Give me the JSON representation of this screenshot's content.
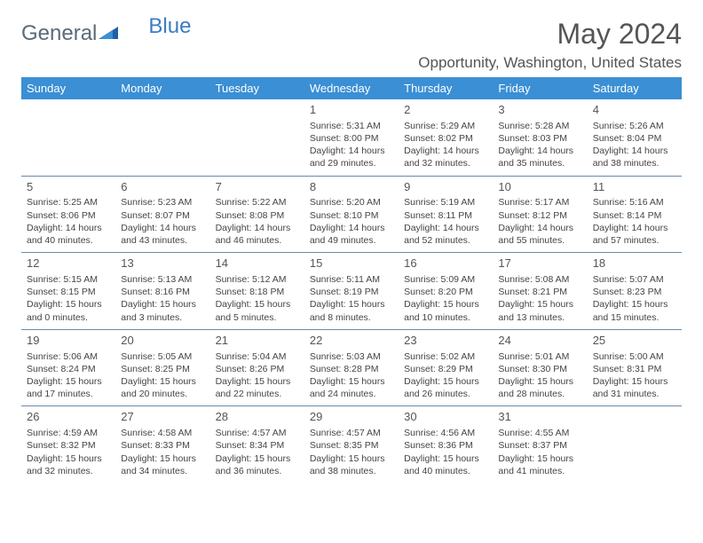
{
  "logo": {
    "text1": "General",
    "text2": "Blue"
  },
  "title": "May 2024",
  "location": "Opportunity, Washington, United States",
  "colors": {
    "header_bg": "#3b8fd4",
    "header_text": "#ffffff",
    "logo_gray": "#5a6a7a",
    "logo_blue": "#3b7dc4",
    "border": "#6a8aaa",
    "text": "#444444",
    "background": "#ffffff"
  },
  "days_of_week": [
    "Sunday",
    "Monday",
    "Tuesday",
    "Wednesday",
    "Thursday",
    "Friday",
    "Saturday"
  ],
  "weeks": [
    [
      null,
      null,
      null,
      {
        "n": "1",
        "sr": "5:31 AM",
        "ss": "8:00 PM",
        "dl": "14 hours and 29 minutes."
      },
      {
        "n": "2",
        "sr": "5:29 AM",
        "ss": "8:02 PM",
        "dl": "14 hours and 32 minutes."
      },
      {
        "n": "3",
        "sr": "5:28 AM",
        "ss": "8:03 PM",
        "dl": "14 hours and 35 minutes."
      },
      {
        "n": "4",
        "sr": "5:26 AM",
        "ss": "8:04 PM",
        "dl": "14 hours and 38 minutes."
      }
    ],
    [
      {
        "n": "5",
        "sr": "5:25 AM",
        "ss": "8:06 PM",
        "dl": "14 hours and 40 minutes."
      },
      {
        "n": "6",
        "sr": "5:23 AM",
        "ss": "8:07 PM",
        "dl": "14 hours and 43 minutes."
      },
      {
        "n": "7",
        "sr": "5:22 AM",
        "ss": "8:08 PM",
        "dl": "14 hours and 46 minutes."
      },
      {
        "n": "8",
        "sr": "5:20 AM",
        "ss": "8:10 PM",
        "dl": "14 hours and 49 minutes."
      },
      {
        "n": "9",
        "sr": "5:19 AM",
        "ss": "8:11 PM",
        "dl": "14 hours and 52 minutes."
      },
      {
        "n": "10",
        "sr": "5:17 AM",
        "ss": "8:12 PM",
        "dl": "14 hours and 55 minutes."
      },
      {
        "n": "11",
        "sr": "5:16 AM",
        "ss": "8:14 PM",
        "dl": "14 hours and 57 minutes."
      }
    ],
    [
      {
        "n": "12",
        "sr": "5:15 AM",
        "ss": "8:15 PM",
        "dl": "15 hours and 0 minutes."
      },
      {
        "n": "13",
        "sr": "5:13 AM",
        "ss": "8:16 PM",
        "dl": "15 hours and 3 minutes."
      },
      {
        "n": "14",
        "sr": "5:12 AM",
        "ss": "8:18 PM",
        "dl": "15 hours and 5 minutes."
      },
      {
        "n": "15",
        "sr": "5:11 AM",
        "ss": "8:19 PM",
        "dl": "15 hours and 8 minutes."
      },
      {
        "n": "16",
        "sr": "5:09 AM",
        "ss": "8:20 PM",
        "dl": "15 hours and 10 minutes."
      },
      {
        "n": "17",
        "sr": "5:08 AM",
        "ss": "8:21 PM",
        "dl": "15 hours and 13 minutes."
      },
      {
        "n": "18",
        "sr": "5:07 AM",
        "ss": "8:23 PM",
        "dl": "15 hours and 15 minutes."
      }
    ],
    [
      {
        "n": "19",
        "sr": "5:06 AM",
        "ss": "8:24 PM",
        "dl": "15 hours and 17 minutes."
      },
      {
        "n": "20",
        "sr": "5:05 AM",
        "ss": "8:25 PM",
        "dl": "15 hours and 20 minutes."
      },
      {
        "n": "21",
        "sr": "5:04 AM",
        "ss": "8:26 PM",
        "dl": "15 hours and 22 minutes."
      },
      {
        "n": "22",
        "sr": "5:03 AM",
        "ss": "8:28 PM",
        "dl": "15 hours and 24 minutes."
      },
      {
        "n": "23",
        "sr": "5:02 AM",
        "ss": "8:29 PM",
        "dl": "15 hours and 26 minutes."
      },
      {
        "n": "24",
        "sr": "5:01 AM",
        "ss": "8:30 PM",
        "dl": "15 hours and 28 minutes."
      },
      {
        "n": "25",
        "sr": "5:00 AM",
        "ss": "8:31 PM",
        "dl": "15 hours and 31 minutes."
      }
    ],
    [
      {
        "n": "26",
        "sr": "4:59 AM",
        "ss": "8:32 PM",
        "dl": "15 hours and 32 minutes."
      },
      {
        "n": "27",
        "sr": "4:58 AM",
        "ss": "8:33 PM",
        "dl": "15 hours and 34 minutes."
      },
      {
        "n": "28",
        "sr": "4:57 AM",
        "ss": "8:34 PM",
        "dl": "15 hours and 36 minutes."
      },
      {
        "n": "29",
        "sr": "4:57 AM",
        "ss": "8:35 PM",
        "dl": "15 hours and 38 minutes."
      },
      {
        "n": "30",
        "sr": "4:56 AM",
        "ss": "8:36 PM",
        "dl": "15 hours and 40 minutes."
      },
      {
        "n": "31",
        "sr": "4:55 AM",
        "ss": "8:37 PM",
        "dl": "15 hours and 41 minutes."
      },
      null
    ]
  ]
}
